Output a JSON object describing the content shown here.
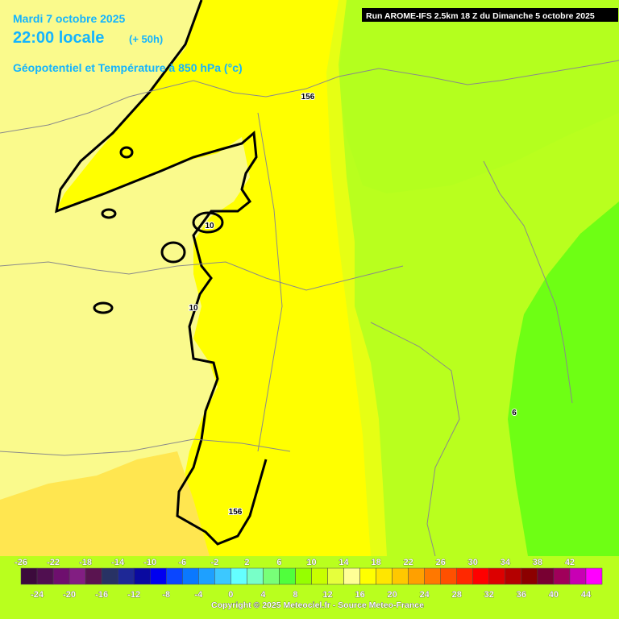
{
  "header": {
    "date": "Mardi 7 octobre 2025",
    "time": "22:00 locale",
    "lead": "(+ 50h)",
    "parameter": "Géopotentiel et Température à 850 hPa (°c)",
    "run": "Run AROME-IFS 2.5km 18 Z du Dimanche 5 octobre 2025"
  },
  "map": {
    "contour_labels": [
      "156",
      "10",
      "10",
      "6",
      "156"
    ]
  },
  "colorbar": {
    "labels": [
      -26,
      -24,
      -22,
      -20,
      -18,
      -16,
      -14,
      -12,
      -10,
      -8,
      -6,
      -4,
      -2,
      0,
      2,
      4,
      6,
      8,
      10,
      12,
      14,
      16,
      18,
      20,
      22,
      24,
      26,
      28,
      30,
      32,
      34,
      36,
      38,
      40,
      42,
      44
    ],
    "colors": [
      "#3c0a3c",
      "#500f50",
      "#6e0f6e",
      "#821e82",
      "#5a1450",
      "#283264",
      "#1e2896",
      "#0a0aa0",
      "#0000f0",
      "#0a46ff",
      "#0a78ff",
      "#1ea0ff",
      "#3cc8ff",
      "#64ffff",
      "#78ffc8",
      "#78ff78",
      "#50ff3c",
      "#96ff00",
      "#c8ff00",
      "#e6ff3c",
      "#ffff96",
      "#ffff00",
      "#ffe600",
      "#ffc800",
      "#ffa000",
      "#ff7800",
      "#ff5000",
      "#ff2800",
      "#ff0000",
      "#dc0000",
      "#b40000",
      "#8c0000",
      "#780032",
      "#a0005a",
      "#c800b4",
      "#ff00ff"
    ]
  },
  "footer": {
    "copyright": "Copyright © 2025 Meteociel.fr - Source Meteo-France"
  }
}
